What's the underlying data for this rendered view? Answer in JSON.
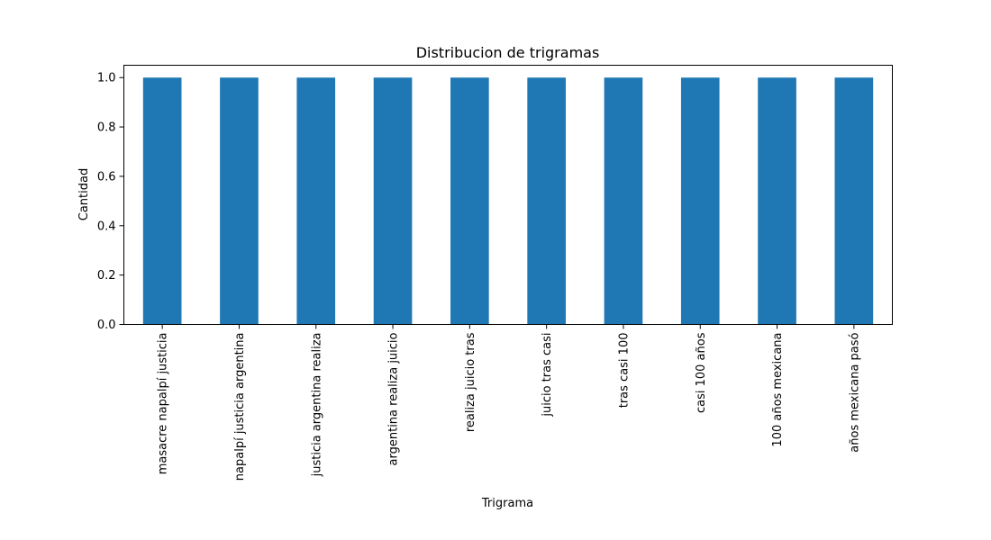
{
  "chart_data": {
    "type": "bar",
    "title": "Distribucion de trigramas",
    "xlabel": "Trigrama",
    "ylabel": "Cantidad",
    "categories": [
      "masacre napalpí justicia",
      "napalpí justicia argentina",
      "justicia argentina realiza",
      "argentina realiza juicio",
      "realiza juicio tras",
      "juicio tras casi",
      "tras casi 100",
      "casi 100 años",
      "100 años mexicana",
      "años mexicana pasó"
    ],
    "values": [
      1,
      1,
      1,
      1,
      1,
      1,
      1,
      1,
      1,
      1
    ],
    "ylim": [
      0,
      1.05
    ],
    "yticks": [
      "0.0",
      "0.2",
      "0.4",
      "0.6",
      "0.8",
      "1.0"
    ],
    "grid": false,
    "bar_color": "#1f77b4"
  }
}
